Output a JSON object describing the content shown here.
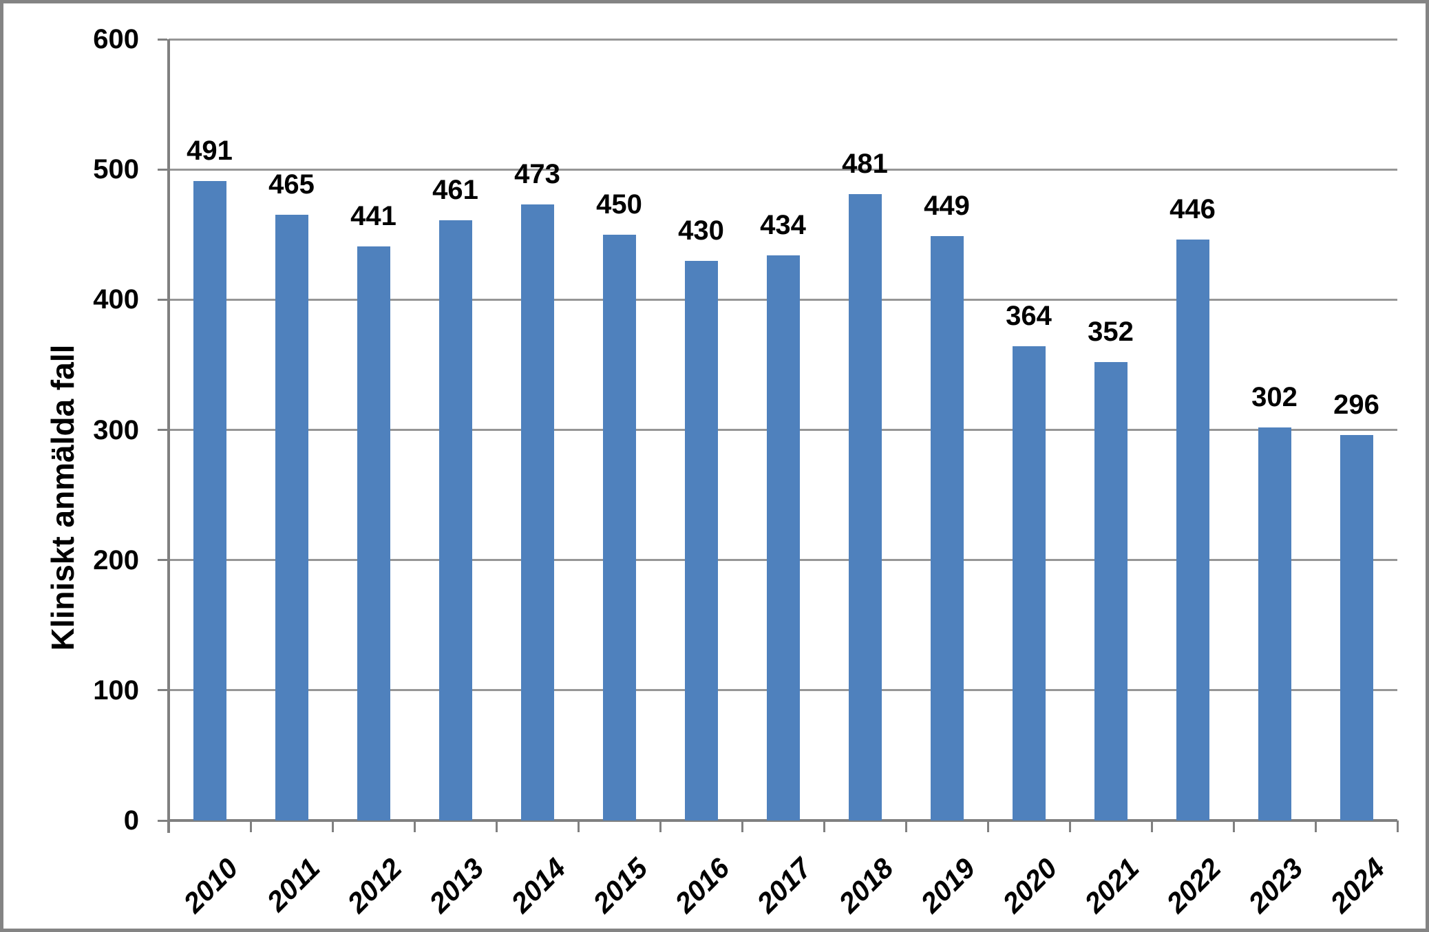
{
  "chart_data": {
    "type": "bar",
    "title": "",
    "xlabel": "",
    "ylabel": "Kliniskt anmälda fall",
    "categories": [
      "2010",
      "2011",
      "2012",
      "2013",
      "2014",
      "2015",
      "2016",
      "2017",
      "2018",
      "2019",
      "2020",
      "2021",
      "2022",
      "2023",
      "2024"
    ],
    "values": [
      491,
      465,
      441,
      461,
      473,
      450,
      430,
      434,
      481,
      449,
      364,
      352,
      446,
      302,
      296
    ],
    "data_labels_shown": true,
    "ylim": [
      0,
      600
    ],
    "ytick_interval": 100,
    "yticks": [
      0,
      100,
      200,
      300,
      400,
      500,
      600
    ],
    "grid": true,
    "legend": false,
    "bar_color": "#4F81BD",
    "gridline_color": "#969696",
    "axis_color": "#808080",
    "text_color": "#000000",
    "border_color": "#848484",
    "background_color": "#FFFFFF"
  }
}
